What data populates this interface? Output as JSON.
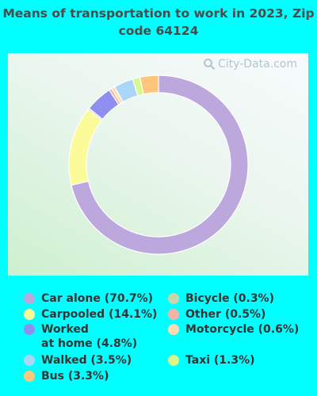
{
  "title": "Means of transportation to work in 2023, Zip code 64124",
  "watermark": "City-Data.com",
  "chart_data": {
    "type": "pie",
    "donut": true,
    "series": [
      {
        "label": "Car alone (70.7%)",
        "value": 70.7,
        "color": "#bca8dc"
      },
      {
        "label": "Carpooled (14.1%)",
        "value": 14.1,
        "color": "#fbfb99"
      },
      {
        "label": "Bicycle (0.3%)",
        "value": 0.3,
        "color": "#c9d6aa"
      },
      {
        "label": "Worked\nat home (4.8%)",
        "value": 4.8,
        "color": "#8f8ff0"
      },
      {
        "label": "Other (0.5%)",
        "value": 0.5,
        "color": "#f4b3a4"
      },
      {
        "label": "Motorcycle (0.6%)",
        "value": 0.6,
        "color": "#fddcb2"
      },
      {
        "label": "Walked (3.5%)",
        "value": 3.5,
        "color": "#acd6f8"
      },
      {
        "label": "Taxi (1.3%)",
        "value": 1.3,
        "color": "#d8f88c"
      },
      {
        "label": "Bus (3.3%)",
        "value": 3.3,
        "color": "#fdc67c"
      }
    ]
  },
  "legend": [
    {
      "label": "Car alone (70.7%)",
      "color": "#bca8dc"
    },
    {
      "label": "Carpooled (14.1%)",
      "color": "#fbfb99"
    },
    {
      "label": "Worked\nat home (4.8%)",
      "color": "#8f8ff0"
    },
    {
      "label": "Walked (3.5%)",
      "color": "#acd6f8"
    },
    {
      "label": "Bus (3.3%)",
      "color": "#fdc67c"
    },
    {
      "label": "Bicycle (0.3%)",
      "color": "#c9d6aa"
    },
    {
      "label": "Other (0.5%)",
      "color": "#f4b3a4"
    },
    {
      "label": "Motorcycle (0.6%)",
      "color": "#fddcb2"
    },
    {
      "label": "Taxi (1.3%)",
      "color": "#d8f88c"
    }
  ]
}
